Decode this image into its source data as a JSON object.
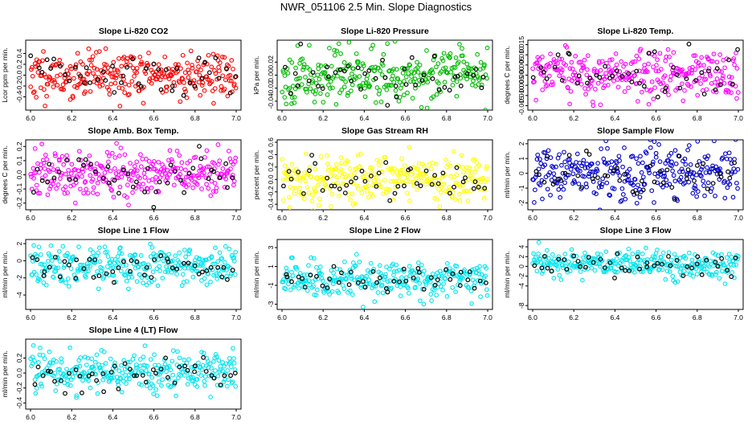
{
  "figure_title": "NWR_051106  2.5 Min. Slope Diagnostics",
  "chart_data": [
    {
      "type": "scatter",
      "title": "Slope Li-820 CO2",
      "ylabel": "Lcor ppm per min.",
      "xlim": [
        6.0,
        7.0
      ],
      "ylim": [
        -0.6,
        0.6
      ],
      "xticks": [
        6.0,
        6.2,
        6.4,
        6.6,
        6.8,
        7.0
      ],
      "xtick_labels": [
        "6.0",
        "6.2",
        "6.4",
        "6.6",
        "6.8",
        "7.0"
      ],
      "yticks": [
        -0.4,
        -0.2,
        0.0,
        0.2,
        0.4
      ],
      "ytick_labels": [
        "-0.4",
        "-0.2",
        "0.0",
        "0.2",
        "0.4"
      ],
      "color": "#ff0000",
      "highlight_color": "#000000",
      "spread": 0.45,
      "center": 0.0,
      "point_count": 300,
      "highlight_count": 45,
      "seed": 11
    },
    {
      "type": "scatter",
      "title": "Slope Li-820 Pressure",
      "ylabel": "kPa per min.",
      "xlim": [
        6.0,
        7.0
      ],
      "ylim": [
        -0.05,
        0.05
      ],
      "xticks": [
        6.0,
        6.2,
        6.4,
        6.6,
        6.8,
        7.0
      ],
      "xtick_labels": [
        "6.0",
        "6.2",
        "6.4",
        "6.6",
        "6.8",
        "7.0"
      ],
      "yticks": [
        -0.04,
        -0.02,
        0.0,
        0.02
      ],
      "ytick_labels": [
        "-0.04",
        "-0.02",
        "0.00",
        "0.02"
      ],
      "color": "#00bb00",
      "highlight_color": "#000000",
      "spread": 0.04,
      "center": 0.0,
      "point_count": 300,
      "highlight_count": 45,
      "seed": 23
    },
    {
      "type": "scatter",
      "title": "Slope Li-820 Temp.",
      "ylabel": "degrees C per min.",
      "xlim": [
        6.0,
        7.0
      ],
      "ylim": [
        -0.016,
        0.016
      ],
      "xticks": [
        6.0,
        6.2,
        6.4,
        6.6,
        6.8,
        7.0
      ],
      "xtick_labels": [
        "6.0",
        "6.2",
        "6.4",
        "6.6",
        "6.8",
        "7.0"
      ],
      "yticks": [
        -0.015,
        -0.01,
        -0.005,
        0.0,
        0.005,
        0.01,
        0.015
      ],
      "ytick_labels": [
        "-0.015",
        "-0.010",
        "-0.005",
        "0.000",
        "0.005",
        "0.010",
        "0.015"
      ],
      "color": "#ff00ff",
      "highlight_color": "#000000",
      "spread": 0.012,
      "center": 0.0,
      "point_count": 300,
      "highlight_count": 45,
      "seed": 37
    },
    {
      "type": "scatter",
      "title": "Slope Amb. Box Temp.",
      "ylabel": "degrees C per min.",
      "xlim": [
        6.0,
        7.0
      ],
      "ylim": [
        -0.23,
        0.23
      ],
      "xticks": [
        6.0,
        6.2,
        6.4,
        6.6,
        6.8,
        7.0
      ],
      "xtick_labels": [
        "6.0",
        "6.2",
        "6.4",
        "6.6",
        "6.8",
        "7.0"
      ],
      "yticks": [
        -0.2,
        -0.1,
        0.0,
        0.1,
        0.2
      ],
      "ytick_labels": [
        "-0.2",
        "-0.1",
        "0.0",
        "0.1",
        "0.2"
      ],
      "color": "#ff00ff",
      "highlight_color": "#000000",
      "spread": 0.17,
      "center": 0.0,
      "point_count": 300,
      "highlight_count": 45,
      "seed": 41
    },
    {
      "type": "scatter",
      "title": "Slope Gas Stream RH",
      "ylabel": "percent per min.",
      "xlim": [
        6.0,
        7.0
      ],
      "ylim": [
        -0.45,
        0.6
      ],
      "xticks": [
        6.0,
        6.2,
        6.4,
        6.6,
        6.8,
        7.0
      ],
      "xtick_labels": [
        "6.0",
        "6.2",
        "6.4",
        "6.6",
        "6.8",
        "7.0"
      ],
      "yticks": [
        -0.4,
        -0.2,
        0.0,
        0.2,
        0.4,
        0.6
      ],
      "ytick_labels": [
        "-0.4",
        "-0.2",
        "0.0",
        "0.2",
        "0.4",
        "0.6"
      ],
      "color": "#ffff00",
      "highlight_color": "#000000",
      "spread": 0.38,
      "center": 0.0,
      "point_count": 300,
      "highlight_count": 45,
      "seed": 53
    },
    {
      "type": "scatter",
      "title": "Slope Sample Flow",
      "ylabel": "ml/min per min.",
      "xlim": [
        6.0,
        7.0
      ],
      "ylim": [
        -2.3,
        2.1
      ],
      "xticks": [
        6.0,
        6.2,
        6.4,
        6.6,
        6.8,
        7.0
      ],
      "xtick_labels": [
        "6.0",
        "6.2",
        "6.4",
        "6.6",
        "6.8",
        "7.0"
      ],
      "yticks": [
        -2,
        -1,
        0,
        1,
        2
      ],
      "ytick_labels": [
        "-2",
        "-1",
        "0",
        "1",
        "2"
      ],
      "color": "#0000cc",
      "highlight_color": "#000000",
      "spread": 1.7,
      "center": 0.0,
      "point_count": 300,
      "highlight_count": 45,
      "seed": 67
    },
    {
      "type": "scatter",
      "title": "Slope Line 1 Flow",
      "ylabel": "ml/min per min.",
      "xlim": [
        6.0,
        7.0
      ],
      "ylim": [
        -5.4,
        2.2
      ],
      "xticks": [
        6.0,
        6.2,
        6.4,
        6.6,
        6.8,
        7.0
      ],
      "xtick_labels": [
        "6.0",
        "6.2",
        "6.4",
        "6.6",
        "6.8",
        "7.0"
      ],
      "yticks": [
        -4,
        -2,
        0,
        2
      ],
      "ytick_labels": [
        "-4",
        "-2",
        "0",
        "2"
      ],
      "color": "#00e5ee",
      "highlight_color": "#000000",
      "spread": 2.2,
      "center": -0.6,
      "point_count": 300,
      "highlight_count": 45,
      "seed": 79
    },
    {
      "type": "scatter",
      "title": "Slope Line 2 Flow",
      "ylabel": "ml/min per min.",
      "xlim": [
        6.0,
        7.0
      ],
      "ylim": [
        -3.3,
        3.6
      ],
      "xticks": [
        6.0,
        6.2,
        6.4,
        6.6,
        6.8,
        7.0
      ],
      "xtick_labels": [
        "6.0",
        "6.2",
        "6.4",
        "6.6",
        "6.8",
        "7.0"
      ],
      "yticks": [
        -3,
        -1,
        1,
        3
      ],
      "ytick_labels": [
        "-3",
        "-1",
        "1",
        "3"
      ],
      "color": "#00e5ee",
      "highlight_color": "#000000",
      "spread": 1.8,
      "center": -0.3,
      "point_count": 300,
      "highlight_count": 45,
      "seed": 83
    },
    {
      "type": "scatter",
      "title": "Slope Line 3 Flow",
      "ylabel": "ml/min per min.",
      "xlim": [
        6.0,
        7.0
      ],
      "ylim": [
        -8.3,
        5.0
      ],
      "xticks": [
        6.0,
        6.2,
        6.4,
        6.6,
        6.8,
        7.0
      ],
      "xtick_labels": [
        "6.0",
        "6.2",
        "6.4",
        "6.6",
        "6.8",
        "7.0"
      ],
      "yticks": [
        -8,
        -4,
        -2,
        0,
        2,
        4
      ],
      "ytick_labels": [
        "-8",
        "-4",
        "-2",
        "0",
        "2",
        "4"
      ],
      "color": "#00e5ee",
      "highlight_color": "#000000",
      "spread": 3.0,
      "center": 0.3,
      "point_count": 300,
      "highlight_count": 45,
      "seed": 97
    },
    {
      "type": "scatter",
      "title": "Slope Line 4 (LT) Flow",
      "ylabel": "ml/min per min.",
      "xlim": [
        6.0,
        7.0
      ],
      "ylim": [
        -0.45,
        0.42
      ],
      "xticks": [
        6.0,
        6.2,
        6.4,
        6.6,
        6.8,
        7.0
      ],
      "xtick_labels": [
        "6.0",
        "6.2",
        "6.4",
        "6.6",
        "6.8",
        "7.0"
      ],
      "yticks": [
        -0.4,
        -0.2,
        0.0,
        0.2
      ],
      "ytick_labels": [
        "-0.4",
        "-0.2",
        "0.0",
        "0.2"
      ],
      "color": "#00e5ee",
      "highlight_color": "#000000",
      "spread": 0.27,
      "center": 0.02,
      "point_count": 300,
      "highlight_count": 45,
      "seed": 101
    }
  ]
}
